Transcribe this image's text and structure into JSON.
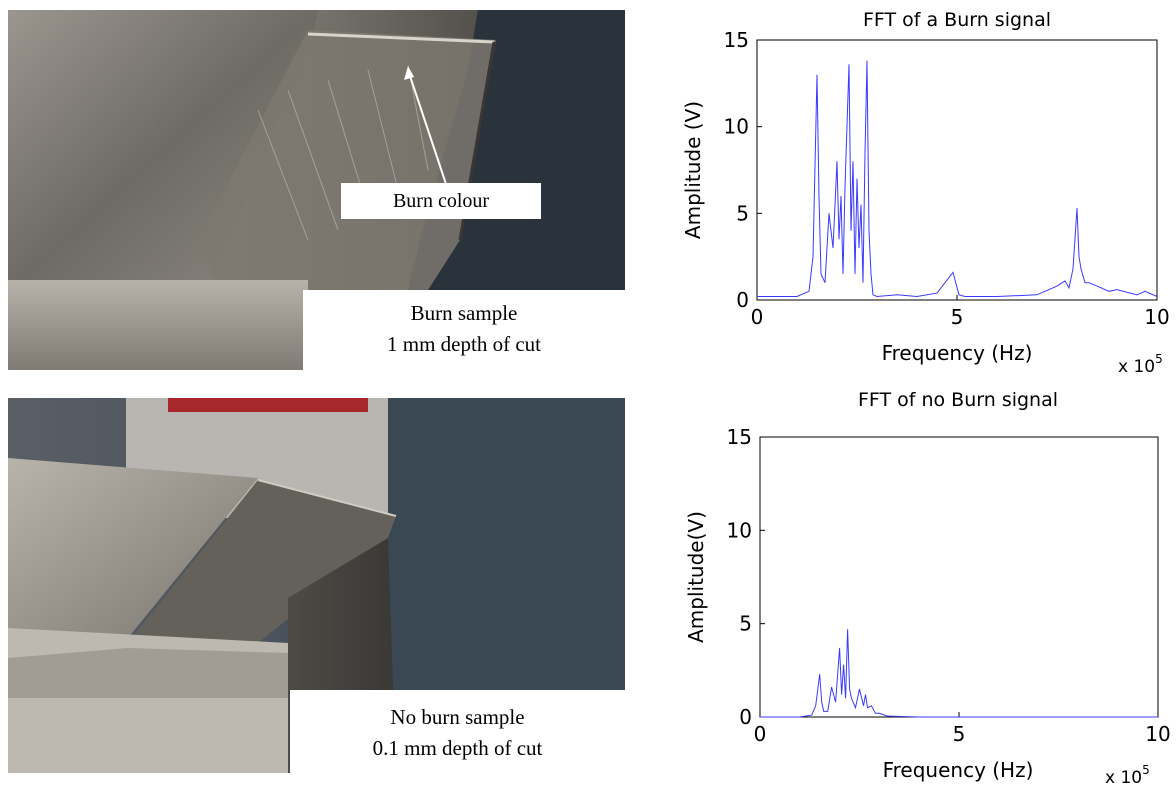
{
  "photos": {
    "burn": {
      "label": "Burn colour",
      "caption_line1": "Burn sample",
      "caption_line2": "1 mm  depth of cut"
    },
    "no_burn": {
      "caption_line1": "No burn sample",
      "caption_line2": "0.1 mm  depth of cut"
    }
  },
  "colors": {
    "signal": "#3a3aff",
    "metal_light": "#c9c6c0",
    "metal_dark": "#5d5a55",
    "background_dark": "#2c3540"
  },
  "chart_data": [
    {
      "type": "line",
      "title": "FFT of a Burn signal",
      "xlabel": "Frequency (Hz)",
      "ylabel": "Amplitude (V)",
      "x_multiplier_label": "x 10",
      "x_multiplier_exp": "5",
      "xlim": [
        0,
        10
      ],
      "ylim": [
        0,
        15
      ],
      "xticks": [
        "0",
        "5",
        "10"
      ],
      "yticks": [
        "0",
        "5",
        "10",
        "15"
      ],
      "grid": false,
      "x": [
        0,
        0.5,
        1.0,
        1.3,
        1.4,
        1.5,
        1.55,
        1.6,
        1.7,
        1.8,
        1.9,
        2.0,
        2.05,
        2.1,
        2.15,
        2.2,
        2.3,
        2.35,
        2.4,
        2.45,
        2.5,
        2.55,
        2.6,
        2.65,
        2.7,
        2.75,
        2.8,
        2.85,
        2.9,
        3.0,
        3.5,
        4.0,
        4.5,
        4.9,
        5.05,
        5.2,
        5.5,
        6.0,
        7.0,
        7.5,
        7.7,
        7.8,
        7.9,
        8.0,
        8.05,
        8.1,
        8.2,
        8.3,
        8.5,
        8.8,
        9.0,
        9.5,
        9.7,
        10
      ],
      "y": [
        0.2,
        0.2,
        0.2,
        0.5,
        2.5,
        13.0,
        6.0,
        1.5,
        1.0,
        5.0,
        3.0,
        8.0,
        3.5,
        6.0,
        1.5,
        6.5,
        13.6,
        4.0,
        8.0,
        1.5,
        7.0,
        3.0,
        5.5,
        1.0,
        8.5,
        13.8,
        4.0,
        1.5,
        0.3,
        0.2,
        0.3,
        0.2,
        0.4,
        1.6,
        0.3,
        0.2,
        0.2,
        0.2,
        0.3,
        0.8,
        1.1,
        0.7,
        1.8,
        5.3,
        2.5,
        1.8,
        1.0,
        1.0,
        0.8,
        0.5,
        0.6,
        0.3,
        0.5,
        0.2
      ]
    },
    {
      "type": "line",
      "title": "FFT of no Burn signal",
      "xlabel": "Frequency (Hz)",
      "ylabel": "Amplitude(V)",
      "x_multiplier_label": "x 10",
      "x_multiplier_exp": "5",
      "xlim": [
        0,
        10
      ],
      "ylim": [
        0,
        15
      ],
      "xticks": [
        "0",
        "5",
        "10"
      ],
      "yticks": [
        "0",
        "5",
        "10",
        "15"
      ],
      "grid": false,
      "x": [
        0,
        0.5,
        1.0,
        1.3,
        1.4,
        1.5,
        1.55,
        1.6,
        1.7,
        1.8,
        1.9,
        2.0,
        2.05,
        2.1,
        2.15,
        2.2,
        2.25,
        2.3,
        2.4,
        2.5,
        2.6,
        2.65,
        2.7,
        2.8,
        2.9,
        3.0,
        3.2,
        4.0,
        5.0,
        6.0,
        7.0,
        8.0,
        9.0,
        10
      ],
      "y": [
        0,
        0,
        0,
        0.1,
        0.6,
        2.3,
        0.8,
        0.3,
        0.3,
        1.6,
        0.8,
        3.7,
        1.2,
        2.8,
        1.0,
        4.7,
        1.5,
        1.0,
        0.5,
        1.5,
        0.6,
        1.2,
        0.5,
        0.6,
        0.2,
        0.2,
        0.05,
        0,
        0,
        0,
        0,
        0,
        0,
        0
      ]
    }
  ]
}
